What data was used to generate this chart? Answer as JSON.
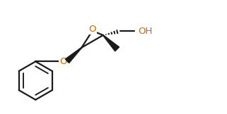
{
  "background_color": "#ffffff",
  "line_color": "#1a1a1a",
  "line_width": 1.6,
  "figsize": [
    3.21,
    1.62
  ],
  "dpi": 100,
  "o_color": "#cc6600",
  "xlim": [
    0,
    10
  ],
  "ylim": [
    0,
    5
  ]
}
